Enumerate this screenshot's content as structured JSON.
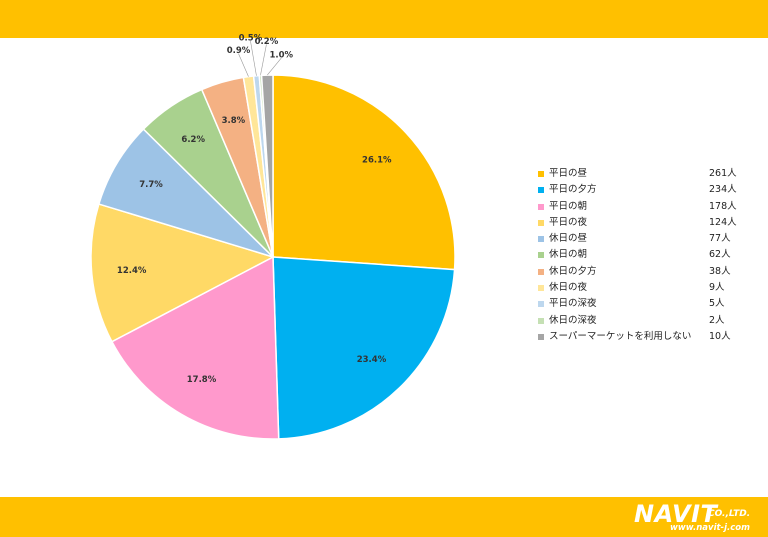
{
  "chart_data": {
    "type": "pie",
    "categories": [
      "平日の昼",
      "平日の夕方",
      "平日の朝",
      "平日の夜",
      "休日の昼",
      "休日の朝",
      "休日の夕方",
      "休日の夜",
      "平日の深夜",
      "休日の深夜",
      "スーパーマーケットを利用しない"
    ],
    "values": [
      261,
      234,
      178,
      124,
      77,
      62,
      38,
      9,
      5,
      2,
      10
    ],
    "counts": [
      "261人",
      "234人",
      "178人",
      "124人",
      "77人",
      "62人",
      "38人",
      "9人",
      "5人",
      "2人",
      "10人"
    ],
    "percent_labels": [
      "26.1%",
      "23.4%",
      "17.8%",
      "12.4%",
      "7.7%",
      "6.2%",
      "3.8%",
      "0.9%",
      "0.5%",
      "0.2%",
      "1.0%"
    ],
    "colors": [
      "#FFC000",
      "#00B0F0",
      "#FF99CC",
      "#FFD966",
      "#9DC3E6",
      "#A9D18E",
      "#F4B183",
      "#FFE699",
      "#BDD7EE",
      "#C5E0B4",
      "#A5A5A5"
    ],
    "legend_position": "right"
  },
  "logo": {
    "name": "NAVIT",
    "suffix": "CO.,LTD.",
    "url": "www.navit-j.com"
  }
}
